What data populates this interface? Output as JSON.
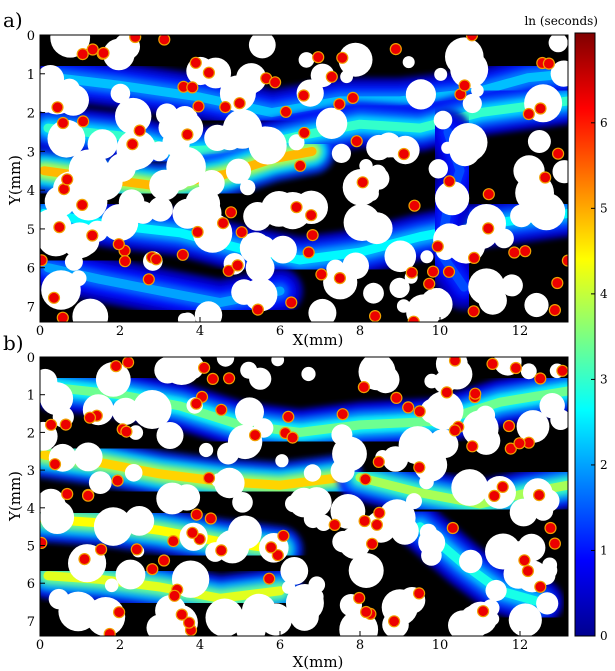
{
  "chart_data": [
    {
      "panel": "a)",
      "type": "heatmap",
      "xlabel": "X(mm)",
      "ylabel": "Y(mm)",
      "xlim": [
        0,
        13.2
      ],
      "ylim": [
        0,
        7.4
      ],
      "y_inverted": true,
      "xticks": [
        0,
        2,
        4,
        6,
        8,
        10,
        12
      ],
      "yticks": [
        0,
        1,
        2,
        3,
        4,
        5,
        6,
        7
      ],
      "pattern": "pore-space residence-time field; solid grains shown white/black; dense red particle clusters",
      "flow_paths": [
        {
          "points": [
            [
              0.4,
              1.1
            ],
            [
              2,
              1.3
            ],
            [
              4,
              1.6
            ],
            [
              5.8,
              2.0
            ],
            [
              7.5,
              1.7
            ],
            [
              9,
              1.7
            ],
            [
              10.8,
              1.5
            ],
            [
              12.2,
              1.1
            ],
            [
              13.2,
              1.0
            ]
          ],
          "value": 2.2
        },
        {
          "points": [
            [
              0.2,
              2.4
            ],
            [
              2,
              2.6
            ],
            [
              3.5,
              3.0
            ],
            [
              5.2,
              2.9
            ],
            [
              6.5,
              2.6
            ],
            [
              8,
              2.3
            ],
            [
              9.5,
              2.4
            ],
            [
              11,
              2.0
            ],
            [
              13.2,
              1.7
            ]
          ],
          "value": 3.0
        },
        {
          "points": [
            [
              0.1,
              3.5
            ],
            [
              1.5,
              3.7
            ],
            [
              3,
              3.9
            ],
            [
              4.6,
              3.6
            ],
            [
              5.8,
              3.2
            ],
            [
              6.8,
              3.0
            ]
          ],
          "value": 4.9
        },
        {
          "points": [
            [
              0.1,
              4.6
            ],
            [
              1.8,
              4.9
            ],
            [
              3.5,
              5.1
            ],
            [
              5,
              5.5
            ],
            [
              6.5,
              5.8
            ],
            [
              8,
              5.6
            ],
            [
              9.5,
              5.2
            ],
            [
              11,
              4.9
            ],
            [
              13.2,
              4.6
            ]
          ],
          "value": 2.6
        },
        {
          "points": [
            [
              0.2,
              6.0
            ],
            [
              1.5,
              6.3
            ],
            [
              3,
              6.6
            ],
            [
              4.5,
              6.9
            ],
            [
              6,
              6.6
            ]
          ],
          "value": 2.0
        },
        {
          "points": [
            [
              10.2,
              2.5
            ],
            [
              10.5,
              3.5
            ],
            [
              10.2,
              4.4
            ],
            [
              10.0,
              5.6
            ],
            [
              10.6,
              6.5
            ]
          ],
          "value": 1.4
        }
      ]
    },
    {
      "panel": "b)",
      "type": "heatmap",
      "xlabel": "X(mm)",
      "ylabel": "Y(mm)",
      "xlim": [
        0,
        13.2
      ],
      "ylim": [
        0,
        7.4
      ],
      "y_inverted": true,
      "xticks": [
        0,
        2,
        4,
        6,
        8,
        10,
        12
      ],
      "yticks": [
        0,
        1,
        2,
        3,
        4,
        5,
        6,
        7
      ],
      "pattern": "pore-space residence-time field; solid grains shown white/black; particles concentrated along lower-left flow paths",
      "flow_paths": [
        {
          "points": [
            [
              0.3,
              0.8
            ],
            [
              2,
              1.0
            ],
            [
              3.5,
              1.3
            ],
            [
              5,
              1.8
            ],
            [
              6.5,
              2.0
            ],
            [
              8,
              1.8
            ],
            [
              10,
              1.7
            ],
            [
              11.5,
              1.2
            ],
            [
              13.2,
              0.9
            ]
          ],
          "value": 3.4
        },
        {
          "points": [
            [
              0.1,
              2.6
            ],
            [
              1.5,
              2.8
            ],
            [
              3,
              3.1
            ],
            [
              4.5,
              3.3
            ],
            [
              6,
              3.4
            ],
            [
              7.5,
              3.2
            ]
          ],
          "value": 4.7
        },
        {
          "points": [
            [
              0.1,
              4.3
            ],
            [
              1.5,
              4.4
            ],
            [
              3,
              4.6
            ],
            [
              4.5,
              4.9
            ],
            [
              6,
              5.1
            ]
          ],
          "value": 4.4
        },
        {
          "points": [
            [
              0.2,
              5.8
            ],
            [
              1.5,
              5.9
            ],
            [
              3,
              6.1
            ],
            [
              4.5,
              6.4
            ],
            [
              6,
              6.2
            ]
          ],
          "value": 4.2
        },
        {
          "points": [
            [
              8,
              3.2
            ],
            [
              9.5,
              3.6
            ],
            [
              11,
              3.9
            ],
            [
              12.2,
              3.6
            ],
            [
              13.2,
              3.4
            ]
          ],
          "value": 3.8
        },
        {
          "points": [
            [
              9.5,
              4.5
            ],
            [
              10.6,
              5.5
            ],
            [
              11.5,
              6.2
            ],
            [
              12.5,
              6.5
            ]
          ],
          "value": 2.8
        }
      ]
    }
  ],
  "colorbar": {
    "label": "ln (seconds)",
    "min": 0,
    "max": 7.05,
    "ticks": [
      0,
      1,
      2,
      3,
      4,
      5,
      6
    ],
    "colormap": "jet",
    "colors": [
      "#00008f",
      "#0000ff",
      "#00ffff",
      "#7fff7f",
      "#ffff00",
      "#ff7f00",
      "#ff0000",
      "#800000"
    ]
  }
}
